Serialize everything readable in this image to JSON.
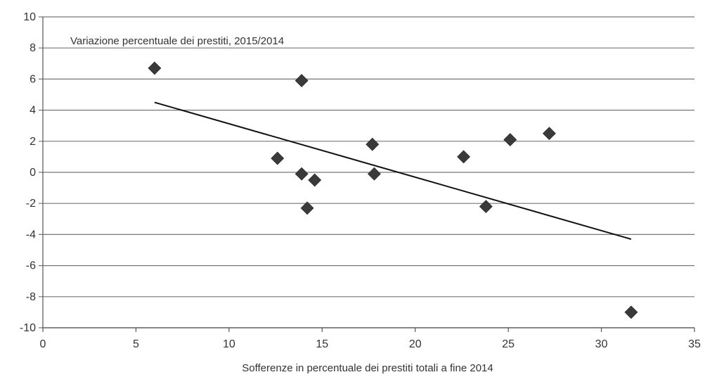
{
  "chart_data": {
    "type": "scatter",
    "title": "Variazione percentuale dei prestiti, 2015/2014",
    "xlabel": "Sofferenze in percentuale dei prestiti totali a fine 2014",
    "ylabel": "",
    "xlim": [
      0,
      35
    ],
    "ylim": [
      -10,
      10
    ],
    "x_ticks": [
      0,
      5,
      10,
      15,
      20,
      25,
      30,
      35
    ],
    "y_ticks": [
      10,
      8,
      6,
      4,
      2,
      0,
      -2,
      -4,
      -6,
      -8,
      -10
    ],
    "grid": "horizontal",
    "legend": "none",
    "marker": "diamond",
    "colors": {
      "marker": "#3a3a3a",
      "trendline": "#111111",
      "grid": "#777777"
    },
    "points": [
      {
        "x": 6.0,
        "y": 6.7
      },
      {
        "x": 12.6,
        "y": 0.9
      },
      {
        "x": 13.9,
        "y": 5.9
      },
      {
        "x": 13.9,
        "y": -0.1
      },
      {
        "x": 14.2,
        "y": -2.3
      },
      {
        "x": 14.6,
        "y": -0.5
      },
      {
        "x": 17.7,
        "y": 1.8
      },
      {
        "x": 17.8,
        "y": -0.1
      },
      {
        "x": 22.6,
        "y": 1.0
      },
      {
        "x": 23.8,
        "y": -2.2
      },
      {
        "x": 25.1,
        "y": 2.1
      },
      {
        "x": 27.2,
        "y": 2.5
      },
      {
        "x": 31.6,
        "y": -9.0
      }
    ],
    "trendline": {
      "from": {
        "x": 6.0,
        "y": 4.5
      },
      "to": {
        "x": 31.6,
        "y": -4.3
      }
    }
  }
}
